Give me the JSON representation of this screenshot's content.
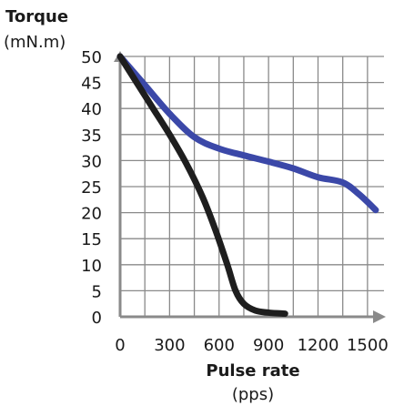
{
  "chart_data": {
    "type": "line",
    "ylabel": {
      "line1": "Torque",
      "line2": "(mN.m)"
    },
    "xlabel": {
      "line1": "Pulse rate",
      "line2": "(pps)"
    },
    "xlim": [
      0,
      1600
    ],
    "ylim": [
      0,
      50
    ],
    "x_ticks": [
      0,
      300,
      600,
      900,
      1200,
      1500
    ],
    "x_tick_labels": [
      "0",
      "300",
      "600",
      "900",
      "1200",
      "1500"
    ],
    "y_ticks": [
      0,
      5,
      10,
      15,
      20,
      25,
      30,
      35,
      40,
      45,
      50
    ],
    "y_tick_labels": [
      "0",
      "5",
      "10",
      "15",
      "20",
      "25",
      "30",
      "35",
      "40",
      "45",
      "50"
    ],
    "x_grid_step": 150,
    "y_grid_step": 5,
    "grid": true,
    "series": [
      {
        "color": "#3b48a8",
        "points": [
          [
            0,
            50
          ],
          [
            150,
            44.5
          ],
          [
            300,
            39
          ],
          [
            450,
            34.5
          ],
          [
            600,
            32.3
          ],
          [
            750,
            31
          ],
          [
            900,
            29.8
          ],
          [
            1050,
            28.5
          ],
          [
            1200,
            26.8
          ],
          [
            1350,
            25.8
          ],
          [
            1450,
            23.5
          ],
          [
            1550,
            20.5
          ]
        ]
      },
      {
        "color": "#1e1e1e",
        "points": [
          [
            0,
            50
          ],
          [
            100,
            45
          ],
          [
            200,
            40
          ],
          [
            300,
            35
          ],
          [
            400,
            29.5
          ],
          [
            500,
            23
          ],
          [
            580,
            16.5
          ],
          [
            650,
            10
          ],
          [
            700,
            5
          ],
          [
            750,
            2.5
          ],
          [
            820,
            1.2
          ],
          [
            900,
            0.8
          ],
          [
            1000,
            0.6
          ]
        ]
      }
    ],
    "grid_color": "#8a8a8a",
    "axis_color": "#8a8a8a",
    "background": "#ffffff"
  }
}
